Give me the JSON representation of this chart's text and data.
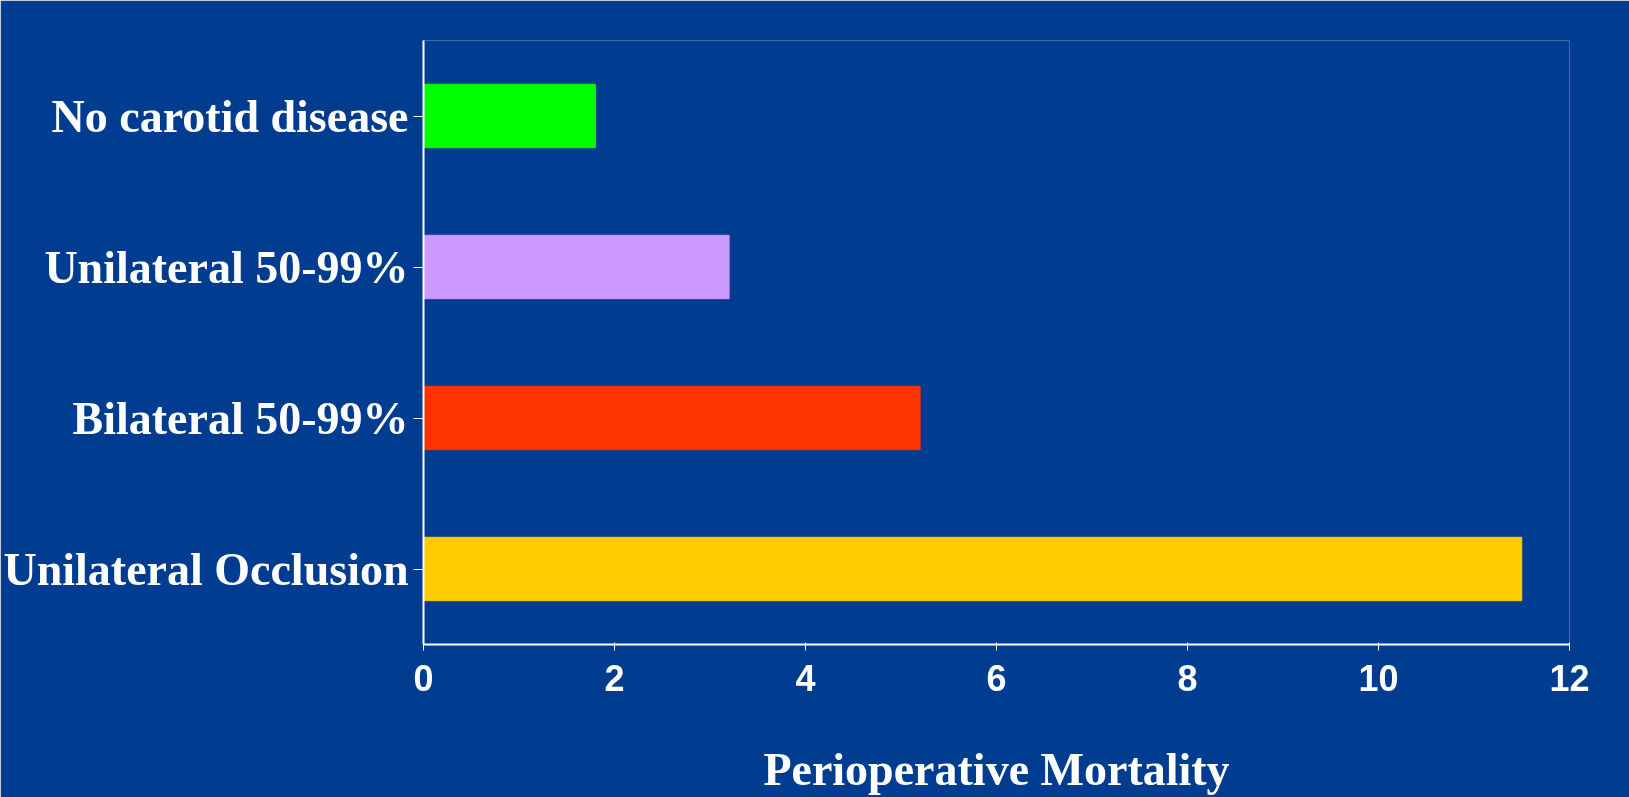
{
  "chart_data": {
    "type": "bar",
    "orientation": "horizontal",
    "xlabel": "Perioperative Mortality",
    "categories": [
      "No carotid disease",
      "Unilateral 50-99%",
      "Bilateral 50-99%",
      "Unilateral Occlusion"
    ],
    "values": [
      1.8,
      3.2,
      5.2,
      11.5
    ],
    "colors": [
      "#00ff00",
      "#cc99ff",
      "#ff3300",
      "#ffcc00"
    ],
    "xlim": [
      0,
      12
    ],
    "xticks": [
      0,
      2,
      4,
      6,
      8,
      10,
      12
    ],
    "grid": false
  }
}
